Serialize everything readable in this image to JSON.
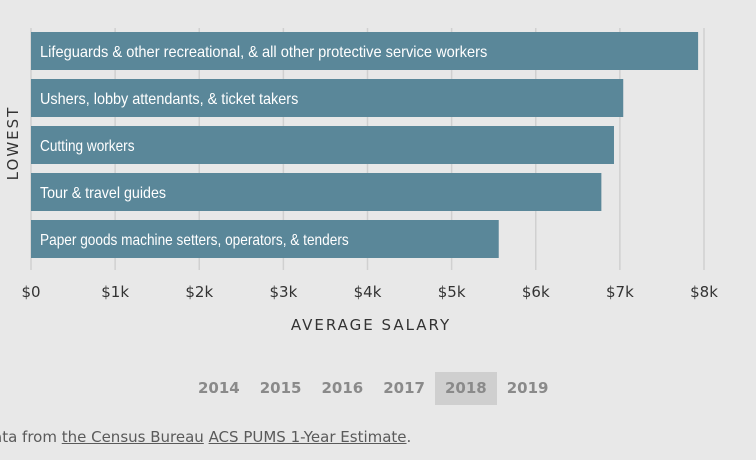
{
  "chart_data": {
    "type": "bar",
    "orientation": "horizontal",
    "ylabel": "LOWEST",
    "xlabel": "AVERAGE SALARY",
    "xlim": [
      0,
      8000
    ],
    "x_ticks": [
      "$0",
      "$1k",
      "$2k",
      "$3k",
      "$4k",
      "$5k",
      "$6k",
      "$7k",
      "$8k"
    ],
    "tick_values": [
      0,
      1000,
      2000,
      3000,
      4000,
      5000,
      6000,
      7000,
      8000
    ],
    "categories": [
      "Lifeguards & other recreational, & all other protective service workers",
      "Ushers, lobby attendants, & ticket takers",
      "Cutting workers",
      "Tour & travel guides",
      "Paper goods machine setters, operators, & tenders"
    ],
    "values": [
      7930,
      7040,
      6930,
      6780,
      5560
    ],
    "grid": "vertical",
    "colors": {
      "bar": "#5a8799",
      "grid": "#d0d0d0",
      "background": "#e8e8e8"
    }
  },
  "years": {
    "items": [
      "2014",
      "2015",
      "2016",
      "2017",
      "2018",
      "2019"
    ],
    "selected": "2018"
  },
  "source": {
    "prefix": "ata from ",
    "link1": "the Census Bureau",
    "link2": "ACS PUMS 1-Year Estimate",
    "suffix": "."
  }
}
